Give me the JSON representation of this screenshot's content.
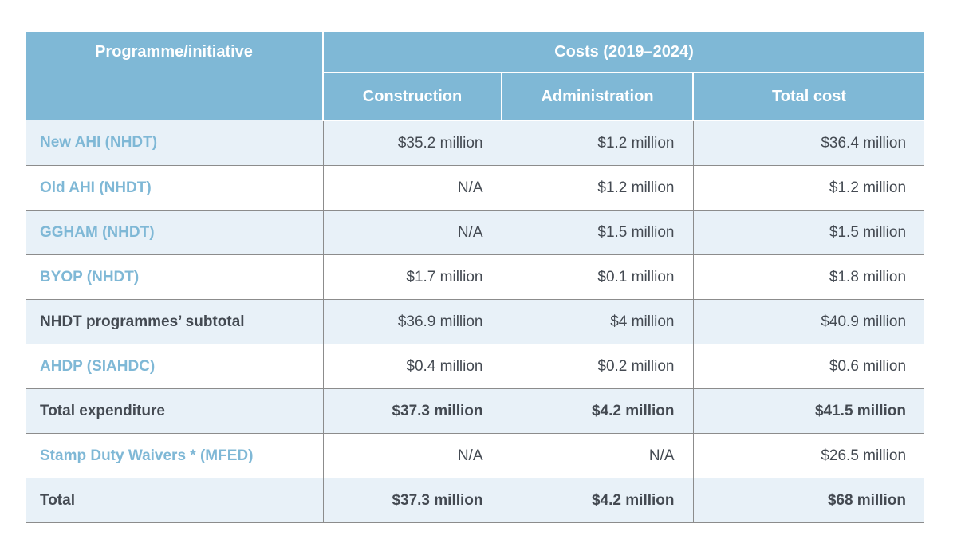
{
  "header": {
    "programme_col": "Programme/initiative",
    "costs_group": "Costs (2019–2024)",
    "construction": "Construction",
    "administration": "Administration",
    "total_cost": "Total cost"
  },
  "rows": [
    {
      "name": "New AHI (NHDT)",
      "construction": "$35.2 million",
      "administration": "$1.2 million",
      "total": "$36.4 million"
    },
    {
      "name": "Old AHI (NHDT)",
      "construction": "N/A",
      "administration": "$1.2 million",
      "total": "$1.2 million"
    },
    {
      "name": "GGHAM (NHDT)",
      "construction": "N/A",
      "administration": "$1.5 million",
      "total": "$1.5 million"
    },
    {
      "name": "BYOP (NHDT)",
      "construction": "$1.7 million",
      "administration": "$0.1 million",
      "total": "$1.8 million"
    },
    {
      "name": "NHDT programmes’ subtotal",
      "construction": "$36.9 million",
      "administration": "$4 million",
      "total": "$40.9 million"
    },
    {
      "name": "AHDP (SIAHDC)",
      "construction": "$0.4 million",
      "administration": "$0.2 million",
      "total": "$0.6 million"
    },
    {
      "name": "Total expenditure",
      "construction": "$37.3 million",
      "administration": "$4.2 million",
      "total": "$41.5 million"
    },
    {
      "name": "Stamp Duty Waivers * (MFED)",
      "construction": "N/A",
      "administration": "N/A",
      "total": "$26.5 million"
    },
    {
      "name": "Total",
      "construction": "$37.3 million",
      "administration": "$4.2 million",
      "total": "$68 million"
    }
  ],
  "colors": {
    "header_bg": "#7fb8d6",
    "link_text": "#7fb8d6",
    "shaded_row": "#e8f1f8",
    "body_text": "#444a52"
  }
}
